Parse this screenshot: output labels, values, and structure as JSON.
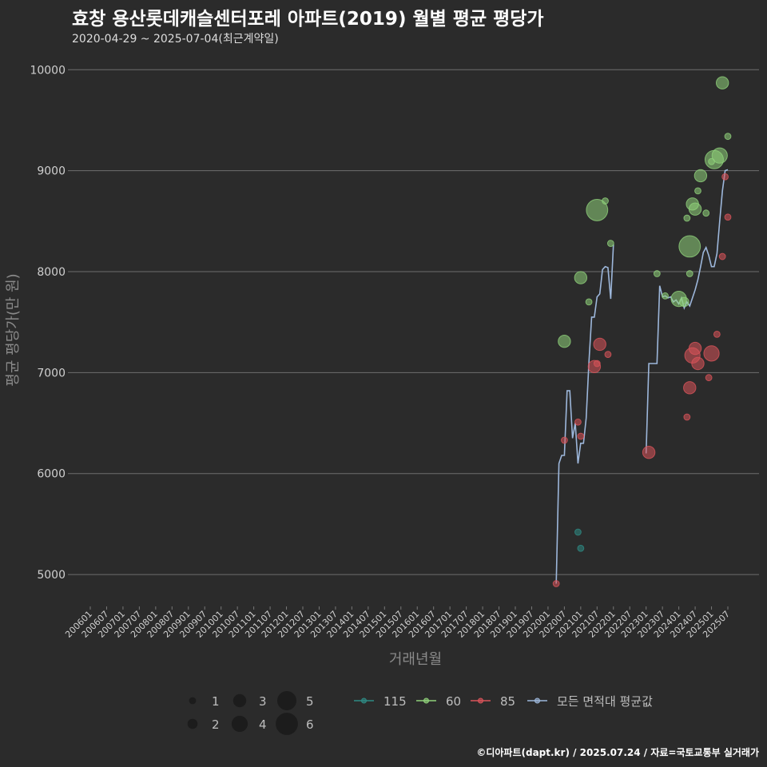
{
  "title": "효창 용산롯데캐슬센터포레 아파트(2019) 월별 평균 평당가",
  "subtitle": "2020-04-29 ~ 2025-07-04(최근계약일)",
  "caption": "©디아파트(dapt.kr) / 2025.07.24 / 자료=국토교통부 실거래가",
  "colors": {
    "background": "#2b2b2b",
    "grid": "#6e6e6e",
    "s115": "#2e8b84",
    "s60": "#8fd17a",
    "s85": "#d9545a",
    "avg": "#9db7db"
  },
  "chart_data": {
    "type": "scatter+line",
    "title": "효창 용산롯데캐슬센터포레 아파트(2019) 월별 평균 평당가",
    "xlabel": "거래년월",
    "ylabel": "평균 평당가(만 원)",
    "ylim": [
      4700,
      10200
    ],
    "yticks": [
      5000,
      6000,
      7000,
      8000,
      9000,
      10000
    ],
    "x_range": [
      "2006-01",
      "2025-07"
    ],
    "xticks": [
      "200601",
      "200607",
      "200701",
      "200707",
      "200801",
      "200807",
      "200901",
      "200907",
      "201001",
      "201007",
      "201101",
      "201107",
      "201201",
      "201207",
      "201301",
      "201307",
      "201401",
      "201407",
      "201501",
      "201507",
      "201601",
      "201607",
      "201701",
      "201707",
      "201801",
      "201807",
      "201901",
      "201907",
      "202001",
      "202007",
      "202101",
      "202107",
      "202201",
      "202207",
      "202301",
      "202307",
      "202401",
      "202407",
      "202501",
      "202507"
    ],
    "size_legend": [
      1,
      2,
      3,
      4,
      5,
      6
    ],
    "legend": [
      "115",
      "60",
      "85",
      "모든 면적대 평균값"
    ],
    "series": [
      {
        "name": "115",
        "points": [
          {
            "x": "2020-12",
            "y": 5420,
            "n": 1
          },
          {
            "x": "2021-01",
            "y": 5260,
            "n": 1
          }
        ]
      },
      {
        "name": "60",
        "points": [
          {
            "x": "2020-07",
            "y": 7310,
            "n": 3
          },
          {
            "x": "2021-01",
            "y": 7940,
            "n": 3
          },
          {
            "x": "2021-04",
            "y": 7700,
            "n": 1
          },
          {
            "x": "2021-07",
            "y": 8610,
            "n": 6
          },
          {
            "x": "2021-10",
            "y": 8700,
            "n": 1
          },
          {
            "x": "2021-12",
            "y": 8280,
            "n": 1
          },
          {
            "x": "2023-05",
            "y": 7980,
            "n": 1
          },
          {
            "x": "2023-08",
            "y": 7760,
            "n": 1
          },
          {
            "x": "2024-01",
            "y": 7730,
            "n": 4
          },
          {
            "x": "2024-03",
            "y": 7700,
            "n": 2
          },
          {
            "x": "2024-04",
            "y": 8530,
            "n": 1
          },
          {
            "x": "2024-05",
            "y": 7980,
            "n": 1
          },
          {
            "x": "2024-05",
            "y": 8250,
            "n": 6
          },
          {
            "x": "2024-06",
            "y": 8670,
            "n": 3
          },
          {
            "x": "2024-07",
            "y": 8620,
            "n": 3
          },
          {
            "x": "2024-08",
            "y": 8800,
            "n": 1
          },
          {
            "x": "2024-09",
            "y": 8950,
            "n": 3
          },
          {
            "x": "2024-11",
            "y": 8580,
            "n": 1
          },
          {
            "x": "2025-01",
            "y": 9090,
            "n": 1
          },
          {
            "x": "2025-02",
            "y": 9110,
            "n": 5
          },
          {
            "x": "2025-04",
            "y": 9150,
            "n": 4
          },
          {
            "x": "2025-05",
            "y": 9870,
            "n": 3
          },
          {
            "x": "2025-07",
            "y": 9340,
            "n": 1
          }
        ]
      },
      {
        "name": "85",
        "points": [
          {
            "x": "2020-04",
            "y": 4910,
            "n": 1
          },
          {
            "x": "2020-07",
            "y": 6330,
            "n": 1
          },
          {
            "x": "2020-12",
            "y": 6510,
            "n": 1
          },
          {
            "x": "2021-01",
            "y": 6370,
            "n": 1
          },
          {
            "x": "2021-06",
            "y": 7060,
            "n": 3
          },
          {
            "x": "2021-07",
            "y": 7090,
            "n": 1
          },
          {
            "x": "2021-08",
            "y": 7280,
            "n": 3
          },
          {
            "x": "2021-11",
            "y": 7180,
            "n": 1
          },
          {
            "x": "2023-02",
            "y": 6210,
            "n": 3
          },
          {
            "x": "2024-04",
            "y": 6560,
            "n": 1
          },
          {
            "x": "2024-05",
            "y": 6850,
            "n": 3
          },
          {
            "x": "2024-06",
            "y": 7170,
            "n": 4
          },
          {
            "x": "2024-07",
            "y": 7240,
            "n": 3
          },
          {
            "x": "2024-08",
            "y": 7090,
            "n": 3
          },
          {
            "x": "2024-12",
            "y": 6950,
            "n": 1
          },
          {
            "x": "2025-01",
            "y": 7190,
            "n": 4
          },
          {
            "x": "2025-03",
            "y": 7380,
            "n": 1
          },
          {
            "x": "2025-05",
            "y": 8150,
            "n": 1
          },
          {
            "x": "2025-06",
            "y": 8940,
            "n": 1
          },
          {
            "x": "2025-07",
            "y": 8540,
            "n": 1
          }
        ]
      }
    ],
    "average_line": {
      "name": "모든 면적대 평균값",
      "segments": [
        [
          [
            "2020-04",
            4910
          ],
          [
            "2020-05",
            6100
          ],
          [
            "2020-06",
            6180
          ],
          [
            "2020-07",
            6180
          ],
          [
            "2020-08",
            6820
          ],
          [
            "2020-09",
            6820
          ],
          [
            "2020-10",
            6350
          ],
          [
            "2020-11",
            6500
          ],
          [
            "2020-12",
            6100
          ],
          [
            "2021-01",
            6300
          ],
          [
            "2021-02",
            6300
          ],
          [
            "2021-03",
            6550
          ],
          [
            "2021-04",
            7100
          ],
          [
            "2021-05",
            7550
          ],
          [
            "2021-06",
            7550
          ],
          [
            "2021-07",
            7750
          ],
          [
            "2021-08",
            7780
          ],
          [
            "2021-09",
            8020
          ],
          [
            "2021-10",
            8050
          ],
          [
            "2021-11",
            8040
          ],
          [
            "2021-12",
            7730
          ],
          [
            "2022-01",
            8270
          ]
        ],
        [
          [
            "2023-01",
            6200
          ],
          [
            "2023-02",
            7090
          ],
          [
            "2023-03",
            7090
          ],
          [
            "2023-04",
            7090
          ],
          [
            "2023-05",
            7090
          ],
          [
            "2023-06",
            7860
          ],
          [
            "2023-07",
            7750
          ],
          [
            "2023-08",
            7760
          ],
          [
            "2023-09",
            7740
          ],
          [
            "2023-10",
            7750
          ],
          [
            "2023-11",
            7700
          ],
          [
            "2023-12",
            7720
          ],
          [
            "2024-01",
            7680
          ],
          [
            "2024-02",
            7740
          ],
          [
            "2024-03",
            7640
          ],
          [
            "2024-04",
            7700
          ],
          [
            "2024-05",
            7660
          ],
          [
            "2024-06",
            7740
          ],
          [
            "2024-07",
            7820
          ],
          [
            "2024-08",
            7920
          ],
          [
            "2024-09",
            8050
          ],
          [
            "2024-10",
            8190
          ],
          [
            "2024-11",
            8240
          ],
          [
            "2024-12",
            8160
          ],
          [
            "2025-01",
            8050
          ],
          [
            "2025-02",
            8050
          ],
          [
            "2025-03",
            8180
          ],
          [
            "2025-04",
            8500
          ],
          [
            "2025-05",
            8800
          ],
          [
            "2025-06",
            9000
          ],
          [
            "2025-07",
            9010
          ]
        ]
      ]
    }
  }
}
